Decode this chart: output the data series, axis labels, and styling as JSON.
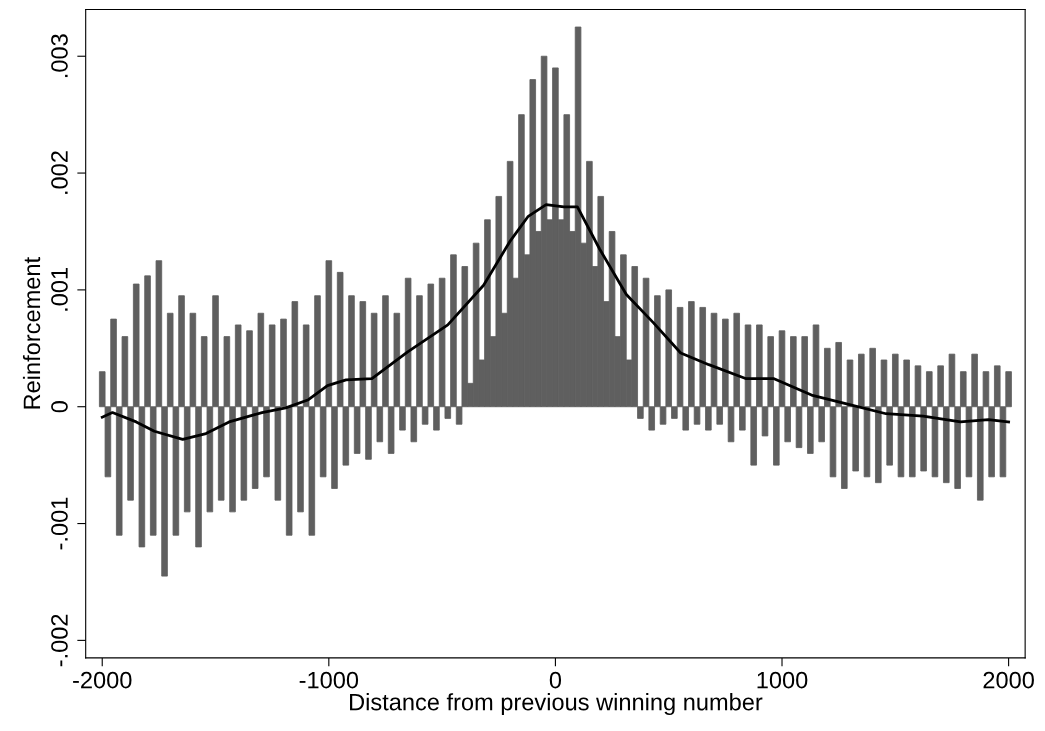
{
  "chart_data": {
    "type": "bar",
    "xlabel": "Distance from previous winning number",
    "ylabel": "Reinforcement",
    "xlim": [
      -2073,
      2073
    ],
    "xticks": [
      -2000,
      -1000,
      0,
      1000,
      2000
    ],
    "ylim": [
      -0.00215,
      0.0034
    ],
    "yticks": [
      {
        "value": -0.002,
        "label": "-.002"
      },
      {
        "value": -0.001,
        "label": "-.001"
      },
      {
        "value": 0,
        "label": "0"
      },
      {
        "value": 0.001,
        "label": ".001"
      },
      {
        "value": 0.002,
        "label": ".002"
      },
      {
        "value": 0.003,
        "label": ".003"
      }
    ],
    "grid": false,
    "legend": false,
    "series": [
      {
        "color": "#5f5f5f",
        "x": [
          -2000,
          -1975,
          -1950,
          -1925,
          -1900,
          -1875,
          -1850,
          -1825,
          -1800,
          -1775,
          -1750,
          -1725,
          -1700,
          -1675,
          -1650,
          -1625,
          -1600,
          -1575,
          -1550,
          -1525,
          -1500,
          -1475,
          -1450,
          -1425,
          -1400,
          -1375,
          -1350,
          -1325,
          -1300,
          -1275,
          -1250,
          -1225,
          -1200,
          -1175,
          -1150,
          -1125,
          -1100,
          -1075,
          -1050,
          -1025,
          -1000,
          -975,
          -950,
          -925,
          -900,
          -875,
          -850,
          -825,
          -800,
          -775,
          -750,
          -725,
          -700,
          -675,
          -650,
          -625,
          -600,
          -575,
          -550,
          -525,
          -500,
          -475,
          -450,
          -425,
          -400,
          -375,
          -350,
          -325,
          -300,
          -275,
          -250,
          -225,
          -200,
          -175,
          -150,
          -125,
          -100,
          -75,
          -50,
          -25,
          0,
          25,
          50,
          75,
          100,
          125,
          150,
          175,
          200,
          225,
          250,
          275,
          300,
          325,
          350,
          375,
          400,
          425,
          450,
          475,
          500,
          525,
          550,
          575,
          600,
          625,
          650,
          675,
          700,
          725,
          750,
          775,
          800,
          825,
          850,
          875,
          900,
          925,
          950,
          975,
          1000,
          1025,
          1050,
          1075,
          1100,
          1125,
          1150,
          1175,
          1200,
          1225,
          1250,
          1275,
          1300,
          1325,
          1350,
          1375,
          1400,
          1425,
          1450,
          1475,
          1500,
          1525,
          1550,
          1575,
          1600,
          1625,
          1650,
          1675,
          1700,
          1725,
          1750,
          1775,
          1800,
          1825,
          1850,
          1875,
          1900,
          1925,
          1950,
          1975,
          2000
        ],
        "values": [
          0.0003,
          -0.0006,
          0.00075,
          -0.0011,
          0.0006,
          -0.0008,
          0.00105,
          -0.0012,
          0.00112,
          -0.0011,
          0.00125,
          -0.00145,
          0.0008,
          -0.0011,
          0.00095,
          -0.0009,
          0.0008,
          -0.0012,
          0.0006,
          -0.0009,
          0.00095,
          -0.0008,
          0.0006,
          -0.0009,
          0.0007,
          -0.0008,
          0.00065,
          -0.0007,
          0.0008,
          -0.0006,
          0.0007,
          -0.0008,
          0.00075,
          -0.0011,
          0.0009,
          -0.0009,
          0.0007,
          -0.0011,
          0.00095,
          -0.0006,
          0.00125,
          -0.0007,
          0.00115,
          -0.0005,
          0.00095,
          -0.0004,
          0.0009,
          -0.00045,
          0.0008,
          -0.0003,
          0.00095,
          -0.0004,
          0.0008,
          -0.0002,
          0.0011,
          -0.0003,
          0.00095,
          -0.00015,
          0.00105,
          -0.0002,
          0.0011,
          -0.0001,
          0.0013,
          -0.00015,
          0.0012,
          0.0002,
          0.0014,
          0.0004,
          0.0016,
          0.0006,
          0.0018,
          0.0008,
          0.0021,
          0.0011,
          0.0025,
          0.0013,
          0.0028,
          0.0015,
          0.003,
          0.0016,
          0.0029,
          0.0016,
          0.0025,
          0.0015,
          0.00325,
          0.0014,
          0.0021,
          0.0012,
          0.0018,
          0.0009,
          0.0015,
          0.0006,
          0.0013,
          0.0004,
          0.0012,
          -0.0001,
          0.0011,
          -0.0002,
          0.00095,
          -0.00015,
          0.001,
          -0.0001,
          0.00085,
          -0.0002,
          0.0009,
          -0.00015,
          0.00085,
          -0.0002,
          0.0008,
          -0.00015,
          0.00075,
          -0.0003,
          0.0008,
          -0.0002,
          0.0007,
          -0.0005,
          0.0007,
          -0.00025,
          0.0006,
          -0.0005,
          0.00065,
          -0.0003,
          0.0006,
          -0.00035,
          0.0006,
          -0.0004,
          0.0007,
          -0.0003,
          0.0005,
          -0.0006,
          0.00055,
          -0.0007,
          0.0004,
          -0.00055,
          0.00045,
          -0.0006,
          0.0005,
          -0.00065,
          0.0004,
          -0.0005,
          0.00045,
          -0.0006,
          0.0004,
          -0.0006,
          0.00035,
          -0.00055,
          0.0003,
          -0.0006,
          0.00035,
          -0.00065,
          0.00045,
          -0.0007,
          0.0003,
          -0.0006,
          0.00045,
          -0.0008,
          0.0003,
          -0.0006,
          0.00035,
          -0.0006,
          0.0003
        ]
      },
      {
        "type": "line",
        "color": "#000000",
        "line_style": "solid",
        "x": [
          -2000,
          -1955,
          -1850,
          -1770,
          -1645,
          -1542,
          -1440,
          -1295,
          -1190,
          -1090,
          -1006,
          -924,
          -810,
          -652,
          -475,
          -317,
          -199,
          -120,
          -41,
          37,
          97,
          195,
          313,
          432,
          553,
          677,
          842,
          965,
          1130,
          1294,
          1459,
          1623,
          1788,
          1911,
          2000
        ],
        "values": [
          -9e-05,
          -5e-05,
          -0.00013,
          -0.00021,
          -0.00028,
          -0.00023,
          -0.00013,
          -5e-05,
          -1e-05,
          6e-05,
          0.00018,
          0.00023,
          0.00024,
          0.00047,
          0.0007,
          0.00104,
          0.00142,
          0.00163,
          0.00173,
          0.00171,
          0.00171,
          0.00135,
          0.00096,
          0.00072,
          0.00046,
          0.00036,
          0.00024,
          0.00024,
          0.0001,
          2e-05,
          -6e-05,
          -8e-05,
          -0.00013,
          -0.00011,
          -0.00013
        ]
      }
    ]
  }
}
